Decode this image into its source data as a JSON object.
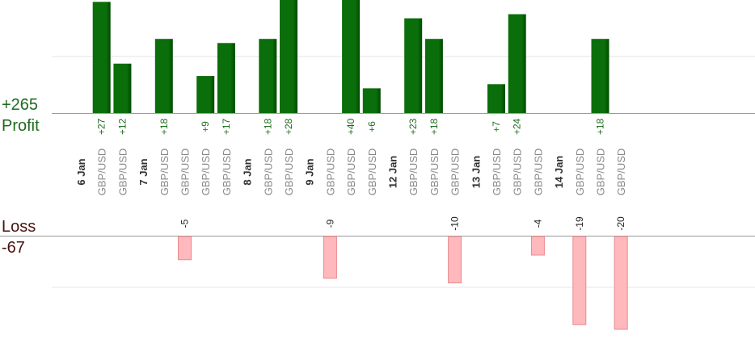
{
  "summary": {
    "profit_total": "+265",
    "profit_label": "Profit",
    "loss_label": "Loss",
    "loss_total": "-67"
  },
  "colors": {
    "profit_bar": "#0a6e0a",
    "profit_bar_dark": "#004b00",
    "profit_text": "#1e6b1e",
    "loss_bar": "#ffb8bc",
    "loss_bar_border": "#e88a90",
    "loss_text": "#4a1010",
    "category_text": "#888888",
    "date_text": "#333333",
    "grid": "#e6e6e6",
    "axis": "#999999"
  },
  "chart_data": {
    "type": "bar",
    "ylim_profit": [
      0,
      28
    ],
    "ylim_loss": [
      -20,
      0
    ],
    "columns": [
      {
        "label": "6 Jan",
        "kind": "date"
      },
      {
        "label": "GBP/USD",
        "value": 27,
        "value_label": "+27"
      },
      {
        "label": "GBP/USD",
        "value": 12,
        "value_label": "+12"
      },
      {
        "label": "7 Jan",
        "kind": "date"
      },
      {
        "label": "GBP/USD",
        "value": 18,
        "value_label": "+18"
      },
      {
        "label": "GBP/USD",
        "value": -5,
        "value_label": "-5"
      },
      {
        "label": "GBP/USD",
        "value": 9,
        "value_label": "+9"
      },
      {
        "label": "GBP/USD",
        "value": 17,
        "value_label": "+17"
      },
      {
        "label": "8 Jan",
        "kind": "date"
      },
      {
        "label": "GBP/USD",
        "value": 18,
        "value_label": "+18"
      },
      {
        "label": "GBP/USD",
        "value": 28,
        "value_label": "+28"
      },
      {
        "label": "9 Jan",
        "kind": "date"
      },
      {
        "label": "GBP/USD",
        "value": -9,
        "value_label": "-9"
      },
      {
        "label": "GBP/USD",
        "value": 40,
        "value_label": "+40"
      },
      {
        "label": "GBP/USD",
        "value": 6,
        "value_label": "+6"
      },
      {
        "label": "12 Jan",
        "kind": "date"
      },
      {
        "label": "GBP/USD",
        "value": 23,
        "value_label": "+23"
      },
      {
        "label": "GBP/USD",
        "value": 18,
        "value_label": "+18"
      },
      {
        "label": "GBP/USD",
        "value": -10,
        "value_label": "-10"
      },
      {
        "label": "13 Jan",
        "kind": "date"
      },
      {
        "label": "GBP/USD",
        "value": 7,
        "value_label": "+7"
      },
      {
        "label": "GBP/USD",
        "value": 24,
        "value_label": "+24"
      },
      {
        "label": "GBP/USD",
        "value": -4,
        "value_label": "-4"
      },
      {
        "label": "14 Jan",
        "kind": "date"
      },
      {
        "label": "GBP/USD",
        "value": -19,
        "value_label": "-19"
      },
      {
        "label": "GBP/USD",
        "value": 18,
        "value_label": "+18"
      },
      {
        "label": "GBP/USD",
        "value": -20,
        "value_label": "-20"
      }
    ]
  }
}
